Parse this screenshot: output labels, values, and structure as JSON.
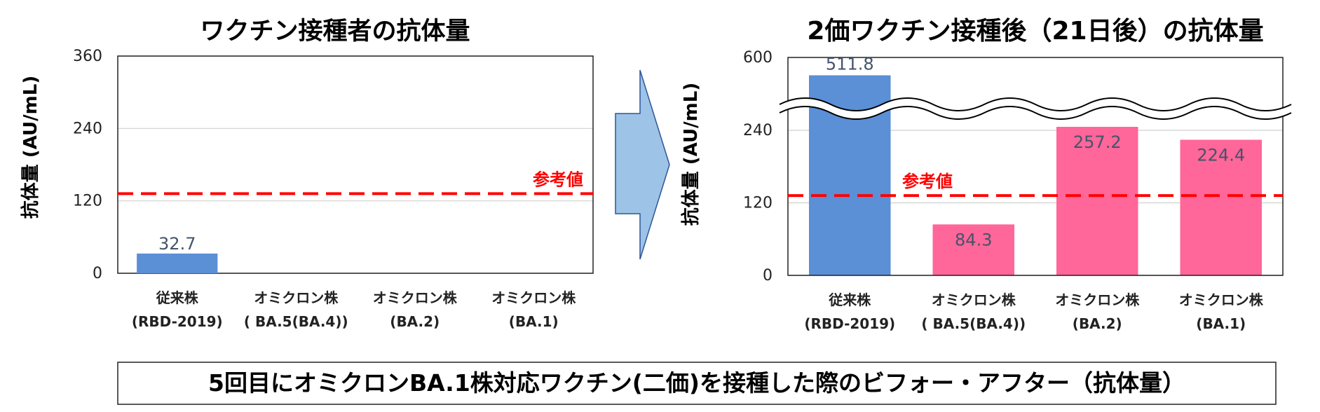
{
  "chart_data": [
    {
      "type": "bar",
      "title": "ワクチン接種者の抗体量",
      "ylabel": "抗体量 (AU/mL)",
      "ylim": [
        0,
        360
      ],
      "yticks": [
        "0",
        "120",
        "240",
        "360"
      ],
      "categories": [
        [
          "従来株",
          "(RBD-2019)"
        ],
        [
          "オミクロン株",
          "( BA.5(BA.4))"
        ],
        [
          "オミクロン株",
          "(BA.2)"
        ],
        [
          "オミクロン株",
          "(BA.1)"
        ]
      ],
      "values": [
        32.7,
        null,
        null,
        null
      ],
      "value_labels": [
        "32.7",
        "",
        "",
        ""
      ],
      "bar_colors": [
        "#5b8fd6",
        "#ff6699",
        "#ff6699",
        "#ff6699"
      ],
      "reference": {
        "label": "参考値",
        "value": 132,
        "color": "#ff0000"
      },
      "grid": true
    },
    {
      "type": "bar",
      "title": "2価ワクチン接種後（21日後）の抗体量",
      "ylabel": "抗体量 (AU/mL)",
      "axis_break": true,
      "yticks": [
        "0",
        "120",
        "240",
        "600"
      ],
      "categories": [
        [
          "従来株",
          "(RBD-2019)"
        ],
        [
          "オミクロン株",
          "( BA.5(BA.4))"
        ],
        [
          "オミクロン株",
          "(BA.2)"
        ],
        [
          "オミクロン株",
          "(BA.1)"
        ]
      ],
      "values": [
        511.8,
        84.3,
        257.2,
        224.4
      ],
      "value_labels": [
        "511.8",
        "84.3",
        "257.2",
        "224.4"
      ],
      "bar_colors": [
        "#5b8fd6",
        "#ff6699",
        "#ff6699",
        "#ff6699"
      ],
      "reference": {
        "label": "参考値",
        "value": 132,
        "color": "#ff0000"
      },
      "grid": true
    }
  ],
  "arrow_color": "#9dc3e6",
  "caption": "5回目にオミクロンBA.1株対応ワクチン(二価)を接種した際のビフォー・アフター（抗体量）"
}
